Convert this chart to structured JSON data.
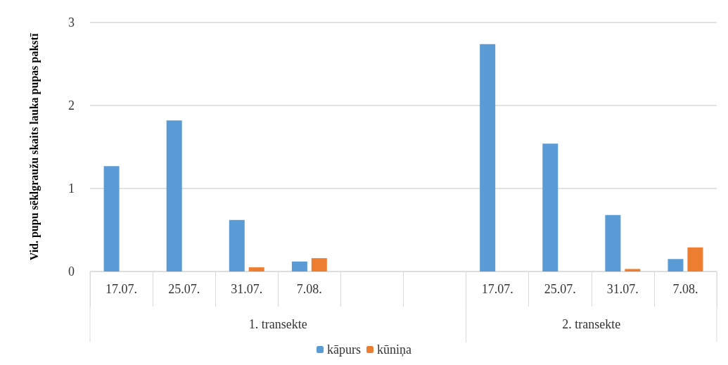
{
  "chart_data": {
    "type": "bar",
    "ylabel": "Vid. pupu sēklgraužu skaits lauka pupas pakstī",
    "categories": [
      "17.07.",
      "25.07.",
      "31.07.",
      "7.08.",
      null,
      null,
      "17.07.",
      "25.07.",
      "31.07.",
      "7.08."
    ],
    "series": [
      {
        "name": "kāpurs",
        "color": "#5b9bd5",
        "values": [
          1.27,
          1.82,
          0.62,
          0.12,
          null,
          null,
          2.74,
          1.54,
          0.68,
          0.15
        ]
      },
      {
        "name": "kūniņa",
        "color": "#ed7d31",
        "values": [
          0,
          0,
          0.05,
          0.16,
          null,
          null,
          0,
          0,
          0.03,
          0.29
        ]
      }
    ],
    "annotations": [
      "1. transekte",
      "2. transekte"
    ],
    "ylim": [
      0,
      3
    ],
    "yticks": [
      0,
      1,
      2,
      3
    ],
    "grid": "y",
    "legend": "bottom"
  }
}
